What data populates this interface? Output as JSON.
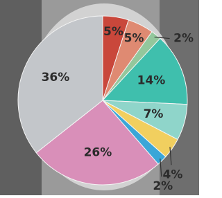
{
  "chart_data": {
    "type": "pie",
    "categories": [
      null,
      null,
      null,
      null,
      null,
      null,
      null,
      null,
      null
    ],
    "values": [
      5,
      5,
      2,
      14,
      7,
      4,
      2,
      26,
      36
    ],
    "value_labels": [
      "5%",
      "5%",
      "2%",
      "14%",
      "7%",
      "4%",
      "2%",
      "26%",
      "36%"
    ],
    "colors": [
      "#c9473b",
      "#df8a72",
      "#93c79c",
      "#3fbfad",
      "#8fd5ca",
      "#f1cf5f",
      "#3aa6d8",
      "#d98fb9",
      "#c3c6ca"
    ]
  }
}
